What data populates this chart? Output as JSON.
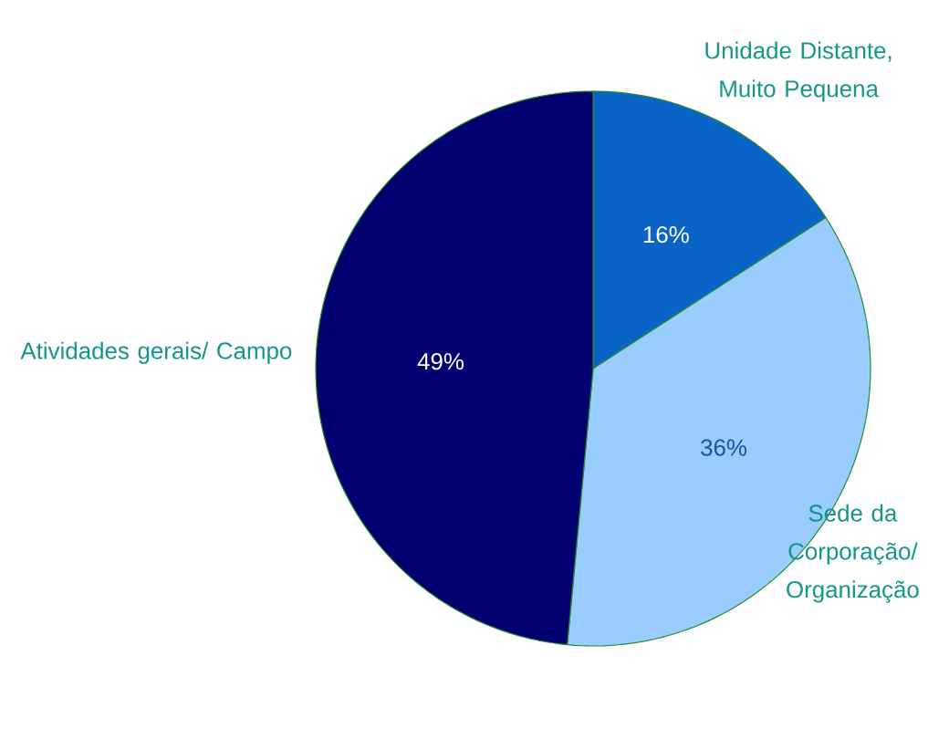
{
  "chart_data": {
    "type": "pie",
    "categories": [
      "Unidade Distante, Muito Pequena",
      "Sede da Corporação/ Organização",
      "Atividades gerais/ Campo"
    ],
    "values": [
      16,
      36,
      49
    ],
    "value_labels": [
      "16%",
      "36%",
      "49%"
    ],
    "colors": [
      "#0a64c8",
      "#99ccff",
      "#000070"
    ]
  }
}
